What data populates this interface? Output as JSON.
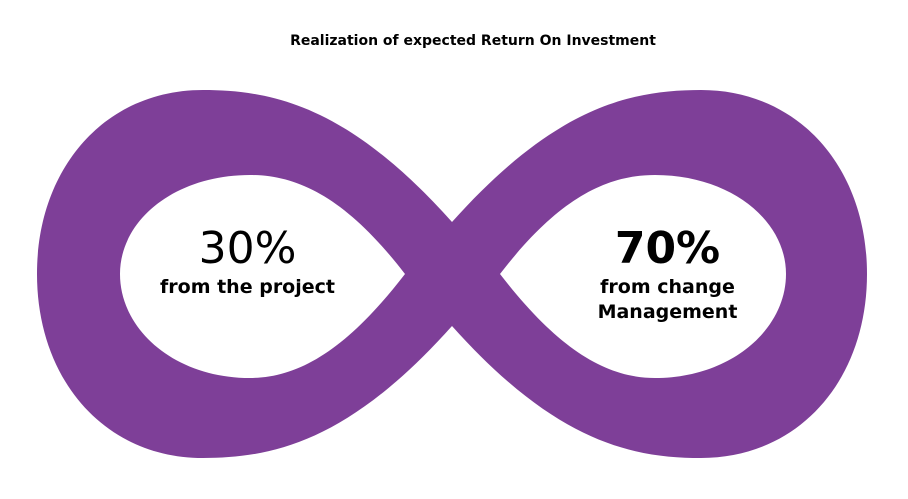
{
  "title": "Realization of expected Return On Investment",
  "colors": {
    "loop": "#7e3f98",
    "background": "#ffffff",
    "text": "#000000"
  },
  "left": {
    "percent": "30%",
    "label": "from the project"
  },
  "right": {
    "percent": "70%",
    "label_lines": [
      "from change",
      "Management"
    ]
  }
}
